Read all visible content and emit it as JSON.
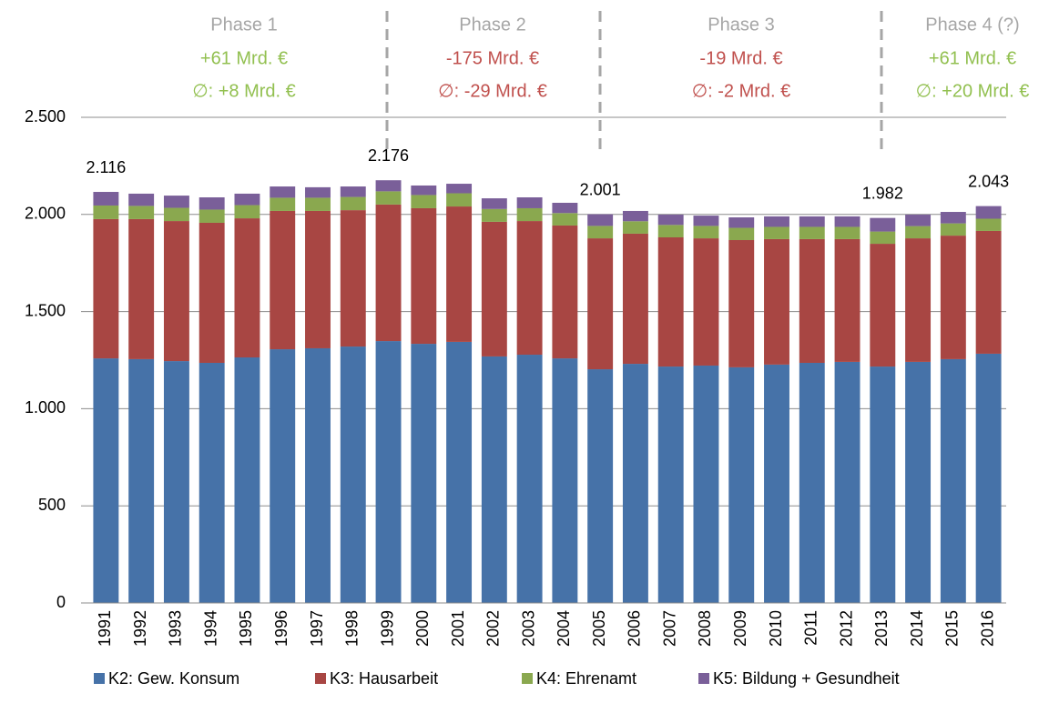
{
  "chart_data": {
    "type": "stacked_bar",
    "categories": [
      "1991",
      "1992",
      "1993",
      "1994",
      "1995",
      "1996",
      "1997",
      "1998",
      "1999",
      "2000",
      "2001",
      "2002",
      "2003",
      "2004",
      "2005",
      "2006",
      "2007",
      "2008",
      "2009",
      "2010",
      "2011",
      "2012",
      "2013",
      "2014",
      "2015",
      "2016"
    ],
    "series": [
      {
        "name": "K2: Gew. Konsum",
        "color": "#4672a8",
        "values": [
          1259,
          1255,
          1245,
          1236,
          1264,
          1306,
          1311,
          1320,
          1348,
          1334,
          1344,
          1269,
          1278,
          1259,
          1203,
          1231,
          1217,
          1222,
          1213,
          1227,
          1236,
          1241,
          1217,
          1241,
          1255,
          1283
        ]
      },
      {
        "name": "K3: Hausarbeit",
        "color": "#a84643",
        "values": [
          717,
          721,
          721,
          721,
          716,
          712,
          707,
          702,
          703,
          698,
          697,
          693,
          688,
          684,
          674,
          670,
          665,
          655,
          655,
          646,
          637,
          632,
          632,
          636,
          636,
          632
        ]
      },
      {
        "name": "K4: Ehrenamt",
        "color": "#8aa84f",
        "values": [
          70,
          68,
          68,
          68,
          68,
          68,
          68,
          68,
          68,
          68,
          68,
          66,
          66,
          64,
          64,
          64,
          64,
          64,
          63,
          63,
          63,
          63,
          63,
          63,
          63,
          63
        ]
      },
      {
        "name": "K5: Bildung + Gesundheit",
        "color": "#7a5f99",
        "values": [
          70,
          63,
          63,
          63,
          59,
          58,
          54,
          54,
          57,
          49,
          49,
          55,
          56,
          53,
          60,
          53,
          53,
          53,
          54,
          54,
          54,
          54,
          70,
          59,
          59,
          65
        ]
      }
    ],
    "ylim": [
      0,
      2500
    ],
    "yticks": [
      0,
      500,
      {
        "value": 1000,
        "label": "1.000"
      },
      {
        "value": 1500,
        "label": "1.500"
      },
      {
        "value": 2000,
        "label": "2.000"
      },
      {
        "value": 2500,
        "label": "2.500"
      }
    ],
    "grid": true,
    "annotations": [
      {
        "x": "1991",
        "value": 2116,
        "label": "2.116"
      },
      {
        "x": "1999",
        "value": 2176,
        "label": "2.176"
      },
      {
        "x": "2005",
        "value": 2001,
        "label": "2.001"
      },
      {
        "x": "2013",
        "value": 1982,
        "label": "1.982"
      },
      {
        "x": "2016",
        "value": 2043,
        "label": "2.043"
      }
    ],
    "phases": [
      {
        "title": "Phase 1",
        "total": "+61 Mrd. €",
        "average": "∅: +8 Mrd. €",
        "color": "#92c050"
      },
      {
        "title": "Phase 2",
        "total": "-175 Mrd. €",
        "average": "∅: -29 Mrd. €",
        "color": "#c0504d"
      },
      {
        "title": "Phase 3",
        "total": "-19 Mrd. €",
        "average": "∅: -2 Mrd. €",
        "color": "#c0504d"
      },
      {
        "title": "Phase 4 (?)",
        "total": "+61 Mrd. €",
        "average": "∅: +20 Mrd. €",
        "color": "#92c050"
      }
    ],
    "legend": "bottom"
  }
}
